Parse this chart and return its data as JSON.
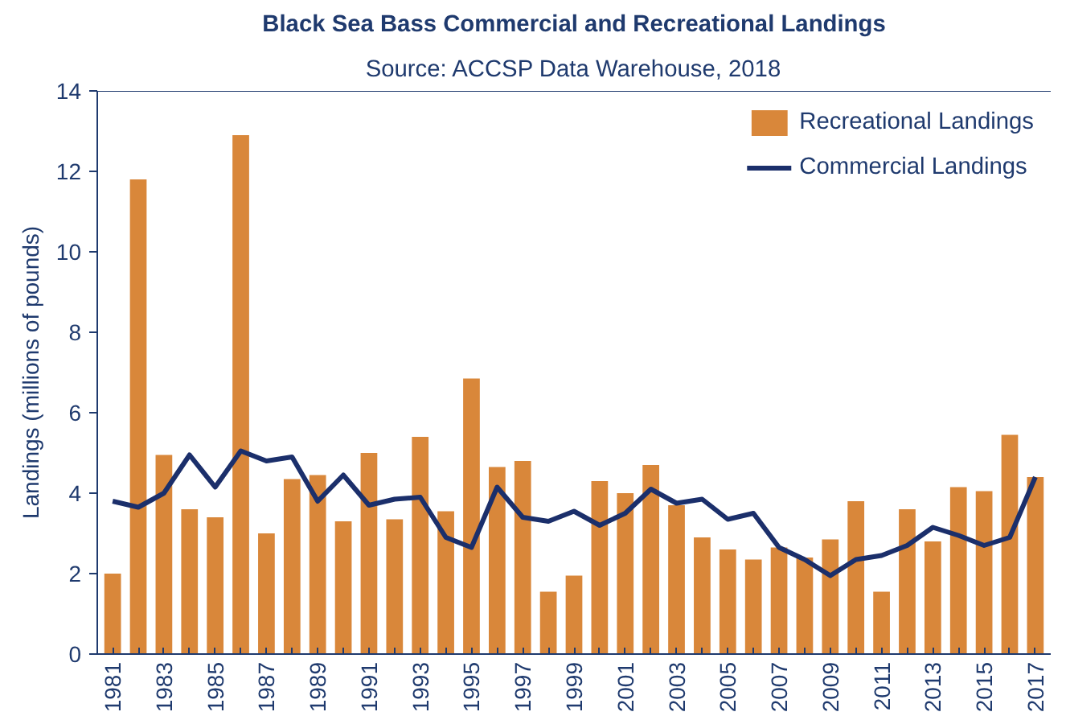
{
  "chart_data": {
    "type": "bar",
    "title": "Black Sea Bass Commercial and Recreational Landings",
    "subtitle": "Source: ACCSP Data Warehouse, 2018",
    "ylabel": "Landings (millions of pounds)",
    "categories": [
      "1981",
      null,
      "1983",
      null,
      "1985",
      null,
      "1987",
      null,
      "1989",
      null,
      "1991",
      null,
      "1993",
      null,
      "1995",
      null,
      "1997",
      null,
      "1999",
      null,
      "2001",
      null,
      "2003",
      null,
      "2005",
      null,
      "2007",
      null,
      "2009",
      null,
      "2011",
      null,
      "2013",
      null,
      "2015",
      null,
      "2017"
    ],
    "series": [
      {
        "name": "Recreational Landings",
        "color": "#d9873a",
        "values": [
          2.0,
          11.8,
          4.95,
          3.6,
          3.4,
          12.9,
          3.0,
          4.35,
          4.45,
          3.3,
          5.0,
          3.35,
          5.4,
          3.55,
          6.85,
          4.65,
          4.8,
          1.55,
          1.95,
          4.3,
          4.0,
          4.7,
          3.7,
          2.9,
          2.6,
          2.35,
          2.65,
          2.4,
          2.85,
          3.8,
          1.55,
          3.6,
          2.8,
          4.15,
          4.05,
          5.45,
          4.4
        ]
      },
      {
        "name": "Commercial Landings",
        "type": "line",
        "color": "#1b2f6b",
        "values": [
          3.8,
          3.65,
          4.0,
          4.95,
          4.15,
          5.05,
          4.8,
          4.9,
          3.8,
          4.45,
          3.7,
          3.85,
          3.9,
          2.9,
          2.65,
          4.15,
          3.4,
          3.3,
          3.55,
          3.2,
          3.5,
          4.1,
          3.75,
          3.85,
          3.35,
          3.5,
          2.65,
          2.35,
          1.95,
          2.35,
          2.45,
          2.7,
          3.15,
          2.95,
          2.7,
          2.9,
          4.4
        ]
      }
    ],
    "ylim": [
      0,
      14
    ],
    "yticks": [
      0,
      2,
      4,
      6,
      8,
      10,
      12,
      14
    ],
    "grid": false,
    "legend": "top right",
    "marker": "none",
    "line_style": "solid"
  }
}
